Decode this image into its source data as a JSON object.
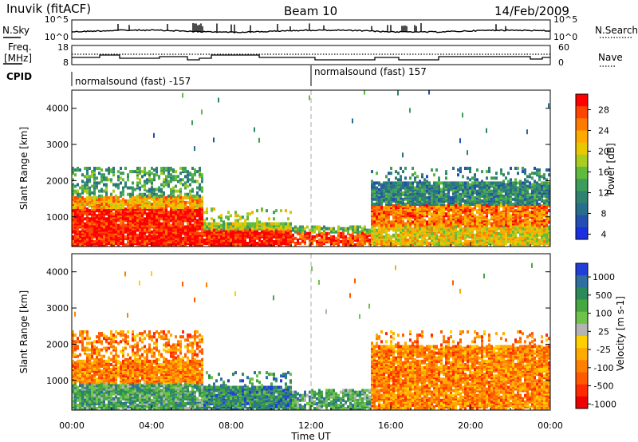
{
  "header": {
    "station": "Inuvik (fitACF)",
    "beam": "Beam 10",
    "date": "14/Feb/2009"
  },
  "panels": {
    "nsky_label": "N.Sky",
    "nsearch_label": "N.Search",
    "nsky_ticks": [
      "10^5",
      "10^0"
    ],
    "nsky_right_ticks": [
      "10^5",
      "10^0"
    ],
    "freq_label": "Freq.",
    "freq_unit": "[MHz]",
    "freq_ticks": [
      "18",
      "8"
    ],
    "nave_label": "Nave",
    "nave_ticks": [
      "60",
      "0"
    ],
    "cpid_label": "CPID",
    "cpid_segments": [
      "normalsound (fast) -157",
      "normalsound (fast) 157"
    ]
  },
  "chart_data": [
    {
      "type": "heatmap",
      "name": "power",
      "ylabel": "Slant Range [km]",
      "yticks": [
        "4000",
        "3000",
        "2000",
        "1000"
      ],
      "ylim": [
        180,
        4500
      ],
      "xlim": [
        0,
        24
      ],
      "colorbar": {
        "label": "Power [dB]",
        "ticks": [
          "28",
          "24",
          "20",
          "16",
          "12",
          "8",
          "4"
        ],
        "colors": [
          "#ff0000",
          "#ff4400",
          "#ff7a00",
          "#ffaa00",
          "#e8c800",
          "#a9cc1f",
          "#5fbb3c",
          "#3d9d5a",
          "#2f8270",
          "#286d8a",
          "#2350b0",
          "#1a2fe0"
        ]
      }
    },
    {
      "type": "heatmap",
      "name": "velocity",
      "ylabel": "Slant Range [km]",
      "yticks": [
        "4000",
        "3000",
        "2000",
        "1000"
      ],
      "ylim": [
        180,
        4500
      ],
      "xlim": [
        0,
        24
      ],
      "colorbar": {
        "label": "Velocity [m s-1]",
        "ticks": [
          "1000",
          "500",
          "100",
          "25",
          "-25",
          "-100",
          "-500",
          "-1000"
        ],
        "colors": [
          "#1f3fd8",
          "#2e6fa0",
          "#2c8a5a",
          "#46a640",
          "#6fc24a",
          "#b4b4b4",
          "#ffd000",
          "#ffaa00",
          "#ff8000",
          "#ff5a00",
          "#ff2a00",
          "#ee0000"
        ]
      }
    }
  ],
  "axes": {
    "xticks": [
      "00:00",
      "04:00",
      "08:00",
      "12:00",
      "16:00",
      "20:00",
      "00:00"
    ],
    "xlabel": "Time UT"
  }
}
